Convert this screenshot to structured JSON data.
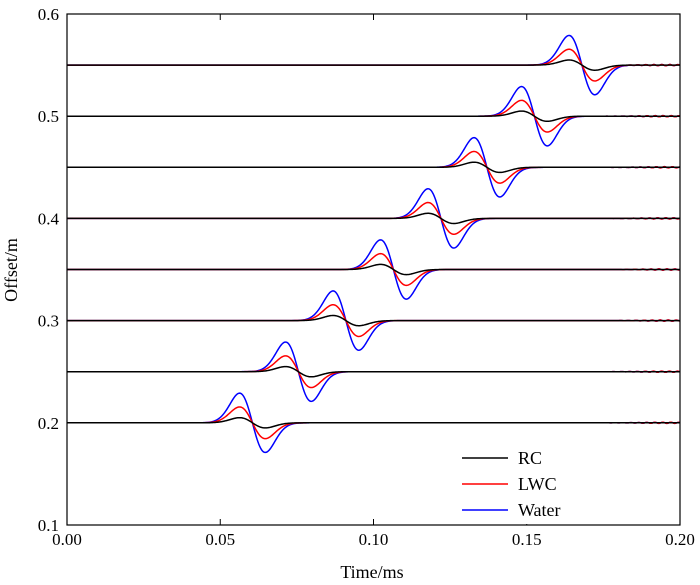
{
  "chart_data": {
    "type": "line",
    "title": "",
    "xlabel": "Time/ms",
    "ylabel": "Offset/m",
    "xlim": [
      0.0,
      0.2
    ],
    "ylim": [
      0.1,
      0.6
    ],
    "x_ticks": [
      0.0,
      0.05,
      0.1,
      0.15,
      0.2
    ],
    "x_tick_labels": [
      "0.00",
      "0.05",
      "0.10",
      "0.15",
      "0.20"
    ],
    "y_ticks": [
      0.1,
      0.2,
      0.3,
      0.4,
      0.5,
      0.6
    ],
    "y_tick_labels": [
      "0.1",
      "0.2",
      "0.3",
      "0.4",
      "0.5",
      "0.6"
    ],
    "grid": false,
    "legend_position": "bottom-right",
    "series": [
      {
        "name": "RC",
        "color": "#000000",
        "amplitude": 0.005
      },
      {
        "name": "LWC",
        "color": "#ff0000",
        "amplitude": 0.0155
      },
      {
        "name": "Water",
        "color": "#0000ff",
        "amplitude": 0.029
      }
    ],
    "traces": [
      {
        "offset": 0.2,
        "arrival_time": 0.0605
      },
      {
        "offset": 0.25,
        "arrival_time": 0.0755
      },
      {
        "offset": 0.3,
        "arrival_time": 0.091
      },
      {
        "offset": 0.35,
        "arrival_time": 0.1065
      },
      {
        "offset": 0.4,
        "arrival_time": 0.122
      },
      {
        "offset": 0.45,
        "arrival_time": 0.137
      },
      {
        "offset": 0.5,
        "arrival_time": 0.1525
      },
      {
        "offset": 0.55,
        "arrival_time": 0.168
      }
    ]
  }
}
